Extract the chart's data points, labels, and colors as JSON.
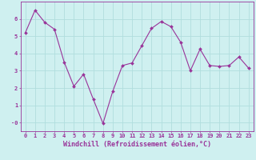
{
  "x": [
    0,
    1,
    2,
    3,
    4,
    5,
    6,
    7,
    8,
    9,
    10,
    11,
    12,
    13,
    14,
    15,
    16,
    17,
    18,
    19,
    20,
    21,
    22,
    23
  ],
  "y": [
    5.2,
    6.5,
    5.8,
    5.4,
    3.5,
    2.1,
    2.8,
    1.35,
    -0.05,
    1.8,
    3.3,
    3.45,
    4.45,
    5.45,
    5.85,
    5.55,
    4.65,
    3.0,
    4.25,
    3.3,
    3.25,
    3.3,
    3.8,
    3.15
  ],
  "line_color": "#993399",
  "marker": "D",
  "marker_size": 2.0,
  "background_color": "#cff0f0",
  "grid_color": "#b0dede",
  "xlabel": "Windchill (Refroidissement éolien,°C)",
  "xlim": [
    -0.5,
    23.5
  ],
  "ylim": [
    -0.5,
    7.0
  ],
  "yticks": [
    0,
    1,
    2,
    3,
    4,
    5,
    6
  ],
  "ytick_labels": [
    "-0",
    "1",
    "2",
    "3",
    "4",
    "5",
    "6"
  ],
  "xticks": [
    0,
    1,
    2,
    3,
    4,
    5,
    6,
    7,
    8,
    9,
    10,
    11,
    12,
    13,
    14,
    15,
    16,
    17,
    18,
    19,
    20,
    21,
    22,
    23
  ],
  "font_color": "#993399",
  "tick_fontsize": 5.0,
  "xlabel_fontsize": 6.0,
  "linewidth": 0.8
}
